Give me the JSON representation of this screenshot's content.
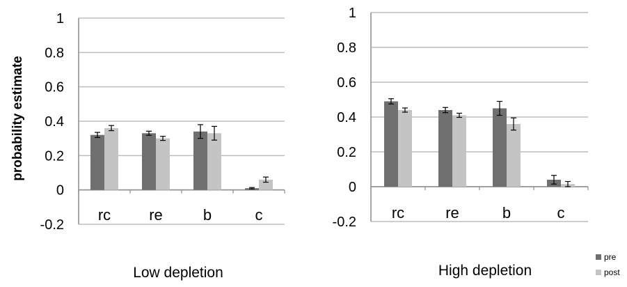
{
  "figure": {
    "ylabel": "probability estimate",
    "legend": {
      "position": "bottom-right",
      "items": [
        {
          "name": "pre",
          "color": "#6f6f6f"
        },
        {
          "name": "post",
          "color": "#c4c4c4"
        }
      ]
    }
  },
  "chart_data": [
    {
      "type": "bar",
      "title": "Low depletion",
      "categories": [
        "rc",
        "re",
        "b",
        "c"
      ],
      "ylim": [
        -0.2,
        1
      ],
      "yticks": [
        "1",
        "0.8",
        "0.6",
        "0.4",
        "0.2",
        "0",
        "-0.2"
      ],
      "ytick_values": [
        1,
        0.8,
        0.6,
        0.4,
        0.2,
        0,
        -0.2
      ],
      "grid": true,
      "series": [
        {
          "name": "pre",
          "color": "#6f6f6f",
          "values": [
            0.32,
            0.33,
            0.34,
            0.01
          ],
          "errors": [
            0.015,
            0.012,
            0.04,
            0.004
          ]
        },
        {
          "name": "post",
          "color": "#c4c4c4",
          "values": [
            0.36,
            0.3,
            0.33,
            0.06
          ],
          "errors": [
            0.015,
            0.012,
            0.04,
            0.015
          ]
        }
      ]
    },
    {
      "type": "bar",
      "title": "High depletion",
      "categories": [
        "rc",
        "re",
        "b",
        "c"
      ],
      "ylim": [
        -0.2,
        1
      ],
      "yticks": [
        "1",
        "0.8",
        "0.6",
        "0.4",
        "0.2",
        "0",
        "-0.2"
      ],
      "ytick_values": [
        1,
        0.8,
        0.6,
        0.4,
        0.2,
        0,
        -0.2
      ],
      "grid": true,
      "series": [
        {
          "name": "pre",
          "color": "#6f6f6f",
          "values": [
            0.49,
            0.44,
            0.45,
            0.04
          ],
          "errors": [
            0.015,
            0.015,
            0.04,
            0.025
          ]
        },
        {
          "name": "post",
          "color": "#c4c4c4",
          "values": [
            0.44,
            0.41,
            0.36,
            0.015
          ],
          "errors": [
            0.012,
            0.012,
            0.035,
            0.015
          ]
        }
      ]
    }
  ]
}
